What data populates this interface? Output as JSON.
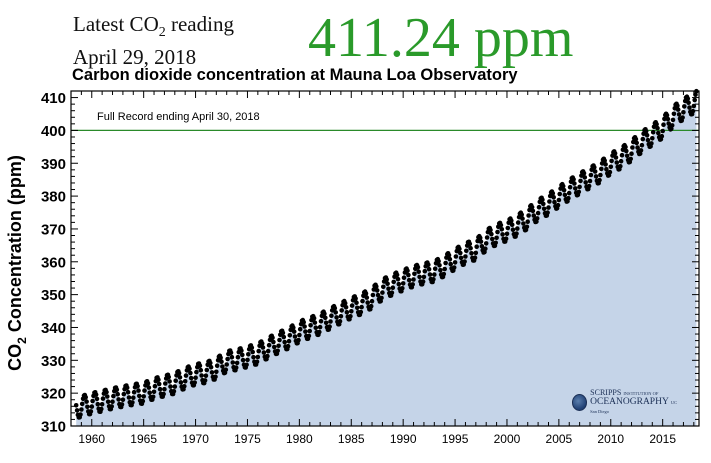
{
  "header": {
    "latest_prefix": "Latest CO",
    "latest_sub": "2",
    "latest_suffix": " reading",
    "date": "April 29, 2018",
    "reading": "411.24 ppm",
    "reading_color": "#2a9a2a"
  },
  "chart_title": "Carbon dioxide concentration at Mauna Loa Observatory",
  "logo": {
    "line1": "SCRIPPS",
    "line1_small": "INSTITUTION OF",
    "line2": "OCEANOGRAPHY",
    "line2_small": "UC San Diego"
  },
  "chart_data": {
    "type": "scatter",
    "title": "Carbon dioxide concentration at Mauna Loa Observatory",
    "annotation": "Full Record ending April 30, 2018",
    "ylabel_main": "CO",
    "ylabel_sub": "2",
    "ylabel_rest": " Concentration (ppm)",
    "xlabel": "",
    "xlim": [
      1958,
      2018.5
    ],
    "ylim": [
      310,
      412
    ],
    "x_ticks": [
      1960,
      1965,
      1970,
      1975,
      1980,
      1985,
      1990,
      1995,
      2000,
      2005,
      2010,
      2015
    ],
    "y_ticks": [
      310,
      320,
      330,
      340,
      350,
      360,
      370,
      380,
      390,
      400,
      410
    ],
    "reference_line": {
      "y": 400,
      "color": "#2a8a2a"
    },
    "fill_color": "#c5d4e8",
    "point_color": "#000000",
    "grid": false,
    "series": [
      {
        "x": [
          1958.5,
          1959,
          1960,
          1961,
          1962,
          1963,
          1964,
          1965,
          1966,
          1967,
          1968,
          1969,
          1970,
          1971,
          1972,
          1973,
          1974,
          1975,
          1976,
          1977,
          1978,
          1979,
          1980,
          1981,
          1982,
          1983,
          1984,
          1985,
          1986,
          1987,
          1988,
          1989,
          1990,
          1991,
          1992,
          1993,
          1994,
          1995,
          1996,
          1997,
          1998,
          1999,
          2000,
          2001,
          2002,
          2003,
          2004,
          2005,
          2006,
          2007,
          2008,
          2009,
          2010,
          2011,
          2012,
          2013,
          2014,
          2015,
          2016,
          2017,
          2018.3
        ],
        "y": [
          315.3,
          316.0,
          316.9,
          317.6,
          318.4,
          319.0,
          319.6,
          320.0,
          321.4,
          322.2,
          323.0,
          324.6,
          325.7,
          326.3,
          327.5,
          329.7,
          330.2,
          331.1,
          332.0,
          333.8,
          335.4,
          336.8,
          338.7,
          339.9,
          341.1,
          342.8,
          344.4,
          345.9,
          347.2,
          349.0,
          351.6,
          353.1,
          354.4,
          355.6,
          356.4,
          357.1,
          358.8,
          360.8,
          362.6,
          363.7,
          366.6,
          368.3,
          369.5,
          371.1,
          373.2,
          375.8,
          377.5,
          379.8,
          381.9,
          383.8,
          385.6,
          387.4,
          389.9,
          391.6,
          393.9,
          396.5,
          398.6,
          400.8,
          404.2,
          406.5,
          409.0
        ],
        "seasonal_amplitude_ppm": 3.2
      }
    ]
  }
}
